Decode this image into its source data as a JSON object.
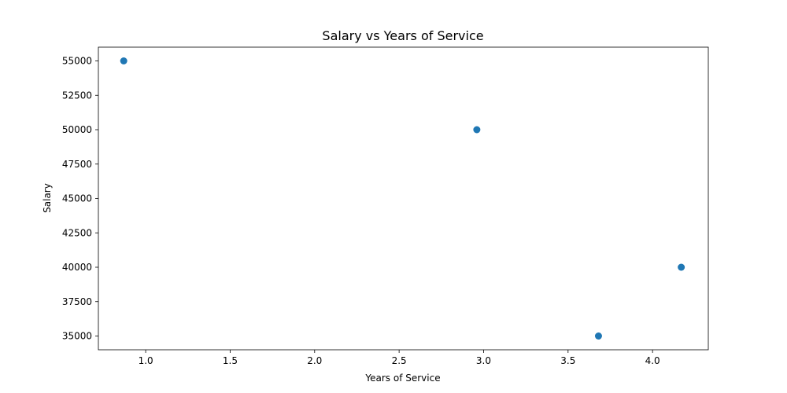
{
  "chart_data": {
    "type": "scatter",
    "title": "Salary vs Years of Service",
    "xlabel": "Years of Service",
    "ylabel": "Salary",
    "xlim": [
      0.72,
      4.33
    ],
    "ylim": [
      34000,
      56000
    ],
    "xticks": [
      "1.0",
      "1.5",
      "2.0",
      "2.5",
      "3.0",
      "3.5",
      "4.0"
    ],
    "xtick_values": [
      1.0,
      1.5,
      2.0,
      2.5,
      3.0,
      3.5,
      4.0
    ],
    "yticks": [
      "35000",
      "37500",
      "40000",
      "42500",
      "45000",
      "47500",
      "50000",
      "52500",
      "55000"
    ],
    "ytick_values": [
      35000,
      37500,
      40000,
      42500,
      45000,
      47500,
      50000,
      52500,
      55000
    ],
    "grid": false,
    "series": [
      {
        "color": "#1f77b4",
        "points": [
          {
            "x": 0.87,
            "y": 55000
          },
          {
            "x": 2.96,
            "y": 50000
          },
          {
            "x": 3.68,
            "y": 35000
          },
          {
            "x": 4.17,
            "y": 40000
          }
        ]
      }
    ]
  }
}
